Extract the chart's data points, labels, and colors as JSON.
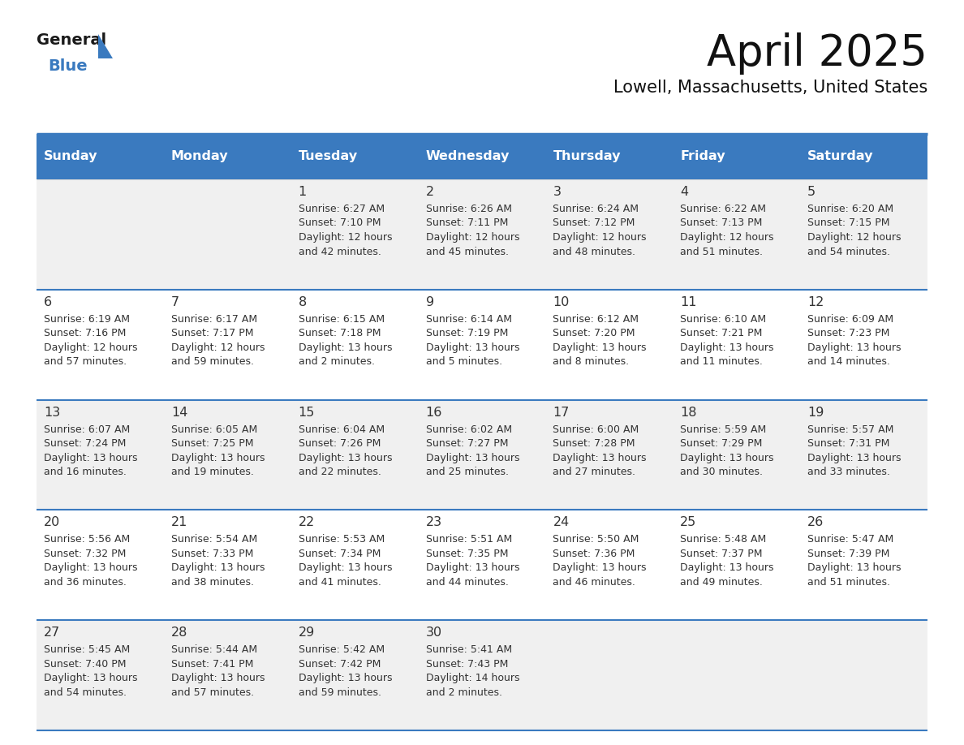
{
  "title": "April 2025",
  "subtitle": "Lowell, Massachusetts, United States",
  "header_bg": "#3a7abf",
  "header_text_color": "#ffffff",
  "cell_bg_row0": "#f0f0f0",
  "cell_bg_row1": "#ffffff",
  "cell_text_color": "#333333",
  "border_color": "#3a7abf",
  "days_of_week": [
    "Sunday",
    "Monday",
    "Tuesday",
    "Wednesday",
    "Thursday",
    "Friday",
    "Saturday"
  ],
  "calendar": [
    [
      {
        "day": "",
        "lines": []
      },
      {
        "day": "",
        "lines": []
      },
      {
        "day": "1",
        "lines": [
          "Sunrise: 6:27 AM",
          "Sunset: 7:10 PM",
          "Daylight: 12 hours",
          "and 42 minutes."
        ]
      },
      {
        "day": "2",
        "lines": [
          "Sunrise: 6:26 AM",
          "Sunset: 7:11 PM",
          "Daylight: 12 hours",
          "and 45 minutes."
        ]
      },
      {
        "day": "3",
        "lines": [
          "Sunrise: 6:24 AM",
          "Sunset: 7:12 PM",
          "Daylight: 12 hours",
          "and 48 minutes."
        ]
      },
      {
        "day": "4",
        "lines": [
          "Sunrise: 6:22 AM",
          "Sunset: 7:13 PM",
          "Daylight: 12 hours",
          "and 51 minutes."
        ]
      },
      {
        "day": "5",
        "lines": [
          "Sunrise: 6:20 AM",
          "Sunset: 7:15 PM",
          "Daylight: 12 hours",
          "and 54 minutes."
        ]
      }
    ],
    [
      {
        "day": "6",
        "lines": [
          "Sunrise: 6:19 AM",
          "Sunset: 7:16 PM",
          "Daylight: 12 hours",
          "and 57 minutes."
        ]
      },
      {
        "day": "7",
        "lines": [
          "Sunrise: 6:17 AM",
          "Sunset: 7:17 PM",
          "Daylight: 12 hours",
          "and 59 minutes."
        ]
      },
      {
        "day": "8",
        "lines": [
          "Sunrise: 6:15 AM",
          "Sunset: 7:18 PM",
          "Daylight: 13 hours",
          "and 2 minutes."
        ]
      },
      {
        "day": "9",
        "lines": [
          "Sunrise: 6:14 AM",
          "Sunset: 7:19 PM",
          "Daylight: 13 hours",
          "and 5 minutes."
        ]
      },
      {
        "day": "10",
        "lines": [
          "Sunrise: 6:12 AM",
          "Sunset: 7:20 PM",
          "Daylight: 13 hours",
          "and 8 minutes."
        ]
      },
      {
        "day": "11",
        "lines": [
          "Sunrise: 6:10 AM",
          "Sunset: 7:21 PM",
          "Daylight: 13 hours",
          "and 11 minutes."
        ]
      },
      {
        "day": "12",
        "lines": [
          "Sunrise: 6:09 AM",
          "Sunset: 7:23 PM",
          "Daylight: 13 hours",
          "and 14 minutes."
        ]
      }
    ],
    [
      {
        "day": "13",
        "lines": [
          "Sunrise: 6:07 AM",
          "Sunset: 7:24 PM",
          "Daylight: 13 hours",
          "and 16 minutes."
        ]
      },
      {
        "day": "14",
        "lines": [
          "Sunrise: 6:05 AM",
          "Sunset: 7:25 PM",
          "Daylight: 13 hours",
          "and 19 minutes."
        ]
      },
      {
        "day": "15",
        "lines": [
          "Sunrise: 6:04 AM",
          "Sunset: 7:26 PM",
          "Daylight: 13 hours",
          "and 22 minutes."
        ]
      },
      {
        "day": "16",
        "lines": [
          "Sunrise: 6:02 AM",
          "Sunset: 7:27 PM",
          "Daylight: 13 hours",
          "and 25 minutes."
        ]
      },
      {
        "day": "17",
        "lines": [
          "Sunrise: 6:00 AM",
          "Sunset: 7:28 PM",
          "Daylight: 13 hours",
          "and 27 minutes."
        ]
      },
      {
        "day": "18",
        "lines": [
          "Sunrise: 5:59 AM",
          "Sunset: 7:29 PM",
          "Daylight: 13 hours",
          "and 30 minutes."
        ]
      },
      {
        "day": "19",
        "lines": [
          "Sunrise: 5:57 AM",
          "Sunset: 7:31 PM",
          "Daylight: 13 hours",
          "and 33 minutes."
        ]
      }
    ],
    [
      {
        "day": "20",
        "lines": [
          "Sunrise: 5:56 AM",
          "Sunset: 7:32 PM",
          "Daylight: 13 hours",
          "and 36 minutes."
        ]
      },
      {
        "day": "21",
        "lines": [
          "Sunrise: 5:54 AM",
          "Sunset: 7:33 PM",
          "Daylight: 13 hours",
          "and 38 minutes."
        ]
      },
      {
        "day": "22",
        "lines": [
          "Sunrise: 5:53 AM",
          "Sunset: 7:34 PM",
          "Daylight: 13 hours",
          "and 41 minutes."
        ]
      },
      {
        "day": "23",
        "lines": [
          "Sunrise: 5:51 AM",
          "Sunset: 7:35 PM",
          "Daylight: 13 hours",
          "and 44 minutes."
        ]
      },
      {
        "day": "24",
        "lines": [
          "Sunrise: 5:50 AM",
          "Sunset: 7:36 PM",
          "Daylight: 13 hours",
          "and 46 minutes."
        ]
      },
      {
        "day": "25",
        "lines": [
          "Sunrise: 5:48 AM",
          "Sunset: 7:37 PM",
          "Daylight: 13 hours",
          "and 49 minutes."
        ]
      },
      {
        "day": "26",
        "lines": [
          "Sunrise: 5:47 AM",
          "Sunset: 7:39 PM",
          "Daylight: 13 hours",
          "and 51 minutes."
        ]
      }
    ],
    [
      {
        "day": "27",
        "lines": [
          "Sunrise: 5:45 AM",
          "Sunset: 7:40 PM",
          "Daylight: 13 hours",
          "and 54 minutes."
        ]
      },
      {
        "day": "28",
        "lines": [
          "Sunrise: 5:44 AM",
          "Sunset: 7:41 PM",
          "Daylight: 13 hours",
          "and 57 minutes."
        ]
      },
      {
        "day": "29",
        "lines": [
          "Sunrise: 5:42 AM",
          "Sunset: 7:42 PM",
          "Daylight: 13 hours",
          "and 59 minutes."
        ]
      },
      {
        "day": "30",
        "lines": [
          "Sunrise: 5:41 AM",
          "Sunset: 7:43 PM",
          "Daylight: 14 hours",
          "and 2 minutes."
        ]
      },
      {
        "day": "",
        "lines": []
      },
      {
        "day": "",
        "lines": []
      },
      {
        "day": "",
        "lines": []
      }
    ]
  ]
}
